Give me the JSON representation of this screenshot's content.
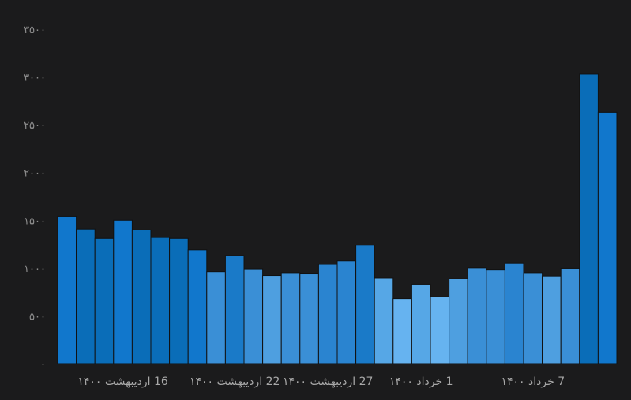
{
  "chart_data": {
    "type": "bar",
    "title": "",
    "xlabel": "",
    "ylabel": "",
    "ylim": [
      0,
      3500
    ],
    "yticks": [
      0,
      500,
      1000,
      1500,
      2000,
      2500,
      3000,
      3500
    ],
    "ytick_labels": [
      "۰",
      "۵۰۰",
      "۱۰۰۰",
      "۱۵۰۰",
      "۲۰۰۰",
      "۲۵۰۰",
      "۳۰۰۰",
      "۳۵۰۰"
    ],
    "grid": false,
    "x_tick_labels": [
      {
        "index": 3,
        "label": "16 اردیبهشت ۱۴۰۰"
      },
      {
        "index": 9,
        "label": "22 اردیبهشت ۱۴۰۰"
      },
      {
        "index": 14,
        "label": "27 اردیبهشت ۱۴۰۰"
      },
      {
        "index": 19,
        "label": "1 خرداد ۱۴۰۰"
      },
      {
        "index": 25,
        "label": "7 خرداد ۱۴۰۰"
      }
    ],
    "values": [
      1540,
      1410,
      1310,
      1500,
      1400,
      1320,
      1310,
      1190,
      960,
      1130,
      990,
      920,
      950,
      945,
      1040,
      1075,
      1240,
      900,
      680,
      830,
      700,
      890,
      1000,
      985,
      1055,
      950,
      915,
      995,
      3030,
      2630
    ],
    "colors": [
      "#1177cc",
      "#0a6db8",
      "#0a6db8",
      "#1177cc",
      "#0a6db8",
      "#0a6db8",
      "#0a6db8",
      "#1177cc",
      "#3a8fd6",
      "#1a7ac8",
      "#3a8fd6",
      "#4e9fe0",
      "#3a8fd6",
      "#3a8fd6",
      "#2a84d0",
      "#2a84d0",
      "#1a7ac8",
      "#56a7e6",
      "#66b3f0",
      "#56a7e6",
      "#66b3f0",
      "#4e9fe0",
      "#3a8fd6",
      "#3a8fd6",
      "#2a84d0",
      "#3a8fd6",
      "#4e9fe0",
      "#3a8fd6",
      "#0a6db8",
      "#1177cc"
    ]
  }
}
